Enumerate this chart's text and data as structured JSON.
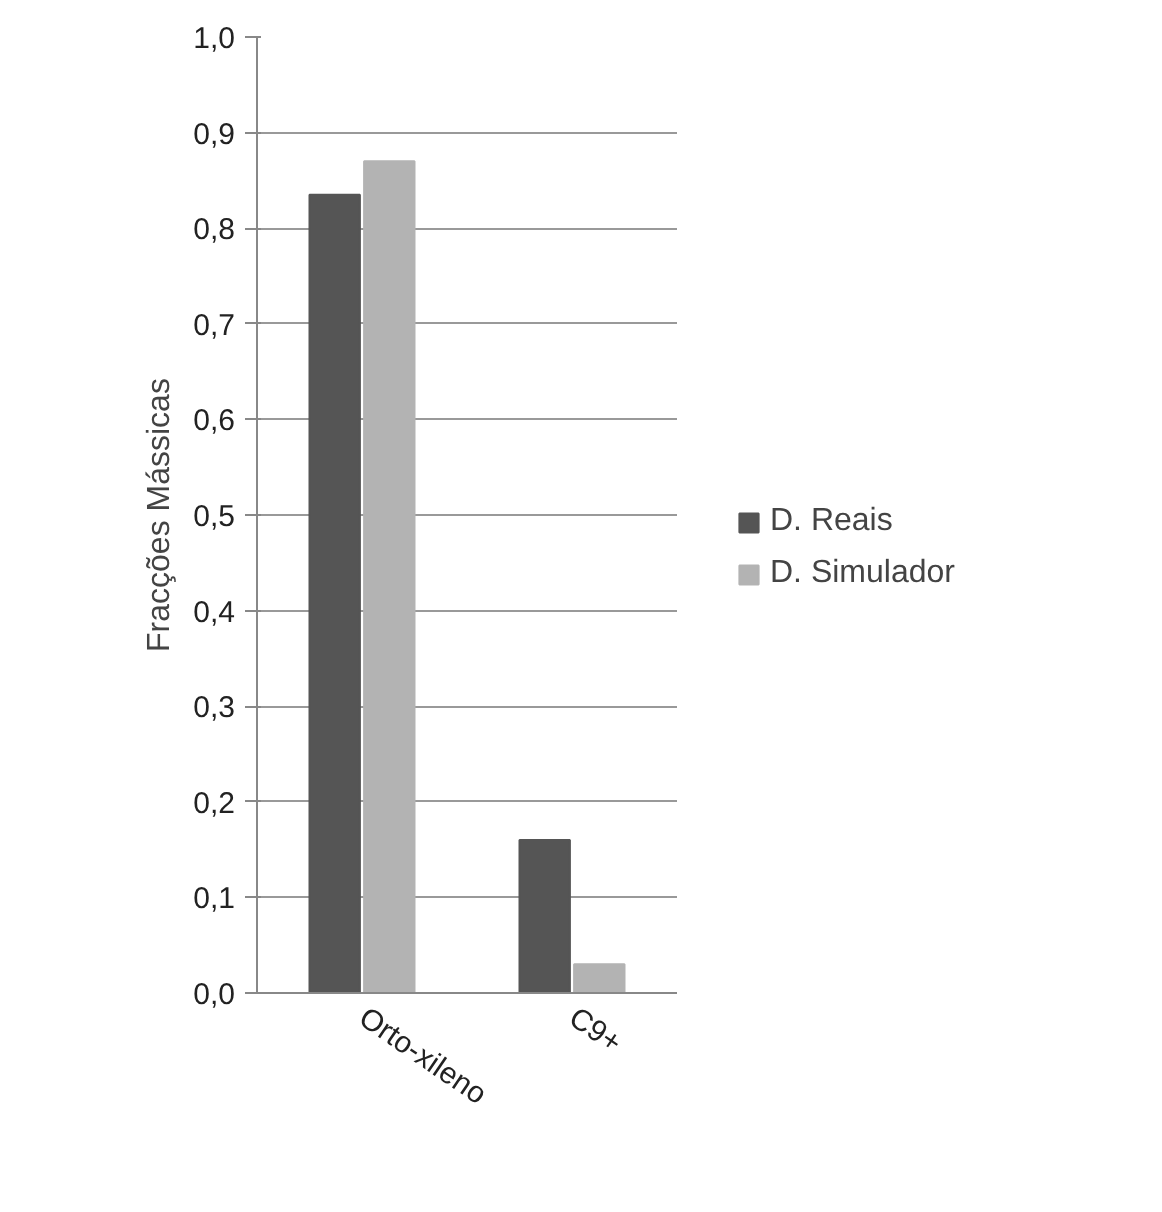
{
  "chart_data": {
    "type": "bar",
    "ylabel": "Fracções Mássicas",
    "categories": [
      "Orto-xileno",
      "C9+"
    ],
    "series": [
      {
        "name": "D. Reais",
        "color": "#555555",
        "values": [
          0.835,
          0.16
        ]
      },
      {
        "name": "D. Simulador",
        "color": "#b3b3b3",
        "values": [
          0.87,
          0.03
        ]
      }
    ],
    "ylim": [
      0,
      1.0
    ],
    "yticks": [
      {
        "value": 0,
        "label": "0,0"
      },
      {
        "value": 0.1,
        "label": "0,1"
      },
      {
        "value": 0.2,
        "label": "0,2"
      },
      {
        "value": 0.3,
        "label": "0,3"
      },
      {
        "value": 0.4,
        "label": "0,4"
      },
      {
        "value": 0.5,
        "label": "0,5"
      },
      {
        "value": 0.6,
        "label": "0,6"
      },
      {
        "value": 0.7,
        "label": "0,7"
      },
      {
        "value": 0.8,
        "label": "0,8"
      },
      {
        "value": 0.9,
        "label": "0,9"
      },
      {
        "value": 1.0,
        "label": "1,0"
      }
    ],
    "grid": "y",
    "legend": "right"
  }
}
